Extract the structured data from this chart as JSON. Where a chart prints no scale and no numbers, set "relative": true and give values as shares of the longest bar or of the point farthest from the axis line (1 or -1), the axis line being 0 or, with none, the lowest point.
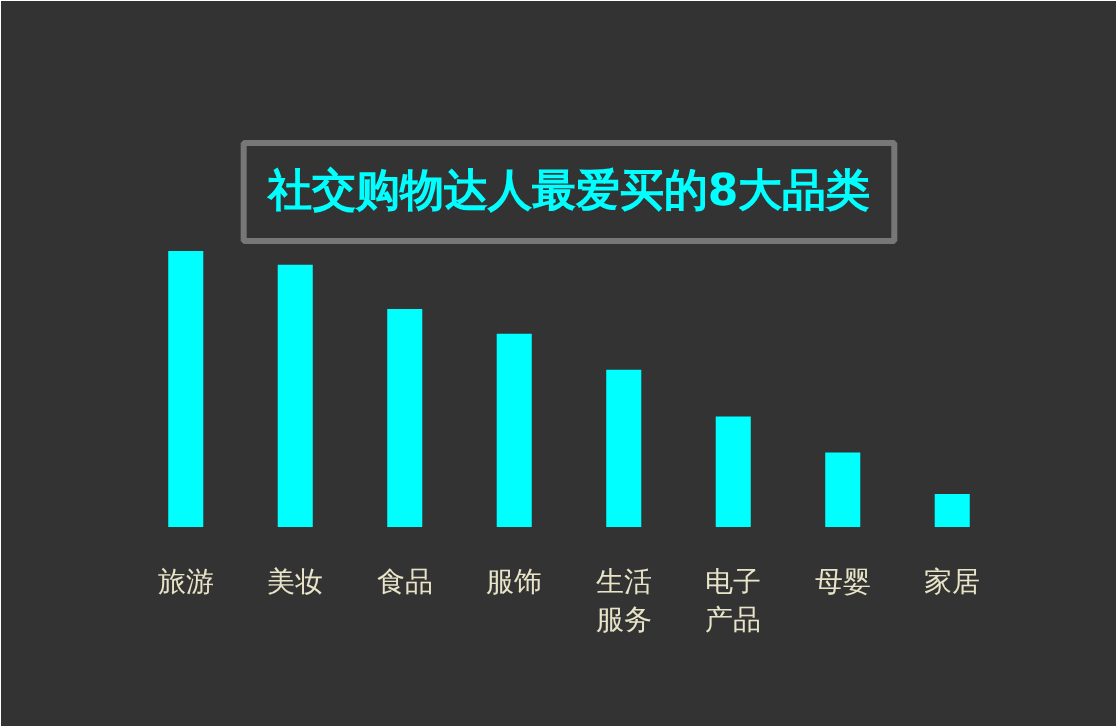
{
  "chart_data": {
    "type": "bar",
    "title": "社交购物达人最爱买的8大品类",
    "relative": true,
    "categories": [
      "旅游",
      "美妆",
      "食品",
      "服饰",
      "生活服务",
      "电子产品",
      "母婴",
      "家居"
    ],
    "values": [
      1,
      0.95,
      0.79,
      0.7,
      0.57,
      0.4,
      0.27,
      0.12
    ],
    "color": "#00ffff"
  }
}
